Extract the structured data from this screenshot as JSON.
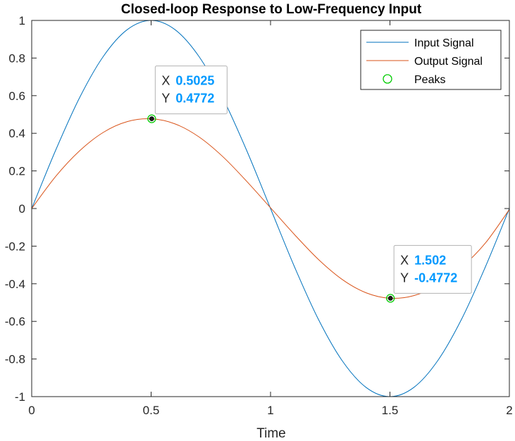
{
  "chart_data": {
    "type": "line",
    "title": "Closed-loop Response to Low-Frequency Input",
    "xlabel": "Time",
    "ylabel": "",
    "xlim": [
      0,
      2
    ],
    "ylim": [
      -1,
      1
    ],
    "x_ticks": [
      "0",
      "0.5",
      "1",
      "1.5",
      "2"
    ],
    "y_ticks": [
      "1",
      "0.8",
      "0.6",
      "0.4",
      "0.2",
      "0",
      "-0.2",
      "-0.4",
      "-0.6",
      "-0.8",
      "-1"
    ],
    "grid": false,
    "legend_position": "top-right",
    "series": [
      {
        "name": "Input Signal",
        "color": "#0072BD",
        "x": [
          0,
          0.1,
          0.2,
          0.3,
          0.4,
          0.5,
          0.6,
          0.7,
          0.8,
          0.9,
          1.0,
          1.1,
          1.2,
          1.3,
          1.4,
          1.5,
          1.6,
          1.7,
          1.8,
          1.9,
          2.0
        ],
        "y": [
          0,
          0.309,
          0.588,
          0.809,
          0.951,
          1.0,
          0.951,
          0.809,
          0.588,
          0.309,
          0,
          -0.309,
          -0.588,
          -0.809,
          -0.951,
          -1.0,
          -0.951,
          -0.809,
          -0.588,
          -0.309,
          0
        ]
      },
      {
        "name": "Output Signal",
        "color": "#D95319",
        "x": [
          0,
          0.1,
          0.2,
          0.3,
          0.4,
          0.5,
          0.6,
          0.7,
          0.8,
          0.9,
          1.0,
          1.1,
          1.2,
          1.3,
          1.4,
          1.5,
          1.6,
          1.7,
          1.8,
          1.9,
          2.0
        ],
        "y": [
          0,
          0.17,
          0.306,
          0.405,
          0.462,
          0.477,
          0.45,
          0.381,
          0.276,
          0.145,
          0.004,
          -0.138,
          -0.27,
          -0.377,
          -0.448,
          -0.477,
          -0.463,
          -0.407,
          -0.313,
          -0.183,
          -0.005
        ]
      }
    ],
    "peaks": {
      "name": "Peaks",
      "color": "#00CC00",
      "points": [
        {
          "x": 0.5025,
          "y": 0.4772
        },
        {
          "x": 1.502,
          "y": -0.4772
        }
      ]
    },
    "datatips": [
      {
        "x_label": "X",
        "x_value": "0.5025",
        "y_label": "Y",
        "y_value": "0.4772"
      },
      {
        "x_label": "X",
        "x_value": "1.502",
        "y_label": "Y",
        "y_value": "-0.4772"
      }
    ],
    "datatip_value_color": "#0099FF"
  }
}
